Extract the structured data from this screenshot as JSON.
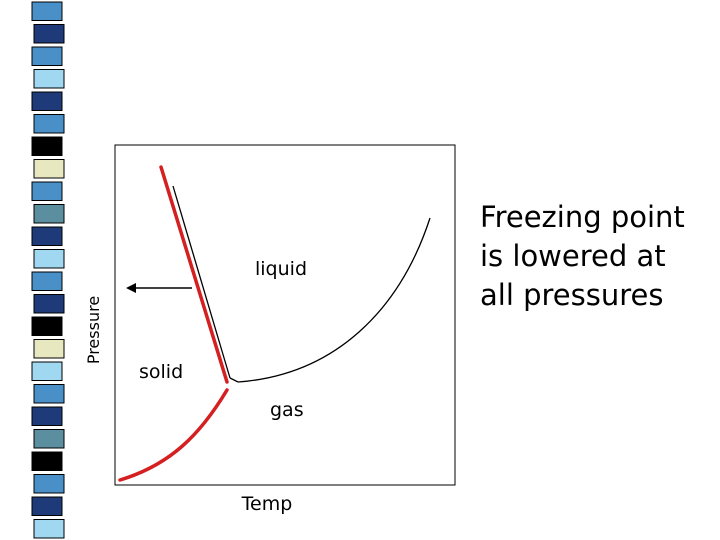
{
  "slide": {
    "stripe_colors": [
      "#4a90c8",
      "#1e3a78",
      "#9fd8f0",
      "#e8e8c0",
      "#000000",
      "#5b8fa0",
      "#2850a0"
    ]
  },
  "diagram": {
    "y_axis_label": "Pressure",
    "x_axis_label": "Temp",
    "region_labels": {
      "liquid": "liquid",
      "solid": "solid",
      "gas": "gas"
    },
    "line_colors": {
      "original": "#000000",
      "shifted": "#d42020"
    }
  },
  "caption": {
    "lines": [
      "Freezing point",
      "is lowered at",
      "all pressures"
    ]
  }
}
